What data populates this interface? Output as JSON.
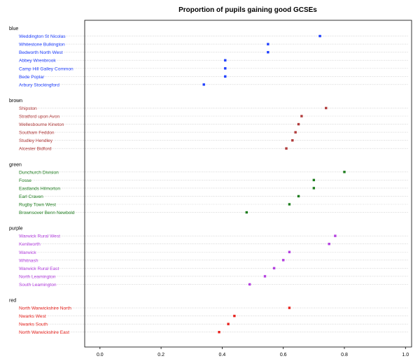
{
  "chart_data": {
    "type": "scatter",
    "title": "Proportion of pupils gaining good GCSEs",
    "xlim": [
      -0.05,
      1.02
    ],
    "x_ticks": [
      "0.0",
      "0.2",
      "0.4",
      "0.6",
      "0.8",
      "1.0"
    ],
    "x_tick_values": [
      0,
      0.2,
      0.4,
      0.6,
      0.8,
      1.0
    ],
    "grid": "horizontal dotted lines per row",
    "groups": [
      {
        "name": "blue",
        "color": "#1f3fff",
        "items": [
          {
            "label": "Weddington St Nicolas",
            "value": 0.72
          },
          {
            "label": "Whitestone Bulkington",
            "value": 0.55
          },
          {
            "label": "Bedworth North West",
            "value": 0.55
          },
          {
            "label": "Abbey Wrenbrook",
            "value": 0.41
          },
          {
            "label": "Camp Hill Galley Common",
            "value": 0.41
          },
          {
            "label": "Bede Poplar",
            "value": 0.41
          },
          {
            "label": "Arbury Stockingford",
            "value": 0.34
          }
        ]
      },
      {
        "name": "brown",
        "color": "#b03a3a",
        "items": [
          {
            "label": "Shipston",
            "value": 0.74
          },
          {
            "label": "Stratford upon Avon",
            "value": 0.66
          },
          {
            "label": "Wellesbourne Kineton",
            "value": 0.65
          },
          {
            "label": "Southam Feddon",
            "value": 0.64
          },
          {
            "label": "Studley Hendley",
            "value": 0.63
          },
          {
            "label": "Alcester Bidford",
            "value": 0.61
          }
        ]
      },
      {
        "name": "green",
        "color": "#1e7d1e",
        "items": [
          {
            "label": "Dunchurch Division",
            "value": 0.8
          },
          {
            "label": "Fosse",
            "value": 0.7
          },
          {
            "label": "Eastlands Hilmorton",
            "value": 0.7
          },
          {
            "label": "Earl Craven",
            "value": 0.65
          },
          {
            "label": "Rugby Town West",
            "value": 0.62
          },
          {
            "label": "Brownsover Benn Newbold",
            "value": 0.48
          }
        ]
      },
      {
        "name": "purple",
        "color": "#b43fe0",
        "items": [
          {
            "label": "Warwick Rural West",
            "value": 0.77
          },
          {
            "label": "Kenilworth",
            "value": 0.75
          },
          {
            "label": "Warwick",
            "value": 0.62
          },
          {
            "label": "Whitnash",
            "value": 0.6
          },
          {
            "label": "Warwick Rural East",
            "value": 0.57
          },
          {
            "label": "North Leamington",
            "value": 0.54
          },
          {
            "label": "South Leamington",
            "value": 0.49
          }
        ]
      },
      {
        "name": "red",
        "color": "#e8231e",
        "items": [
          {
            "label": "North Warwickshire North",
            "value": 0.62
          },
          {
            "label": "Nwarks West",
            "value": 0.44
          },
          {
            "label": "Nwarks South",
            "value": 0.42
          },
          {
            "label": "North Warwickshire East",
            "value": 0.39
          }
        ]
      }
    ]
  }
}
